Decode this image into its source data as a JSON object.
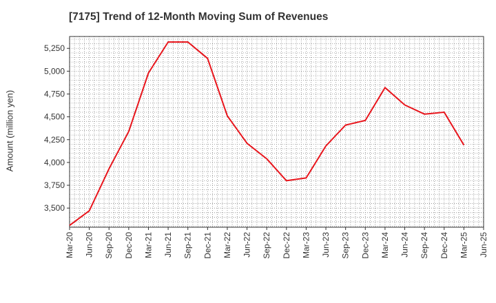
{
  "chart_data": {
    "type": "line",
    "title": "[7175]  Trend of 12-Month Moving Sum of Revenues",
    "xlabel": "",
    "ylabel": "Amount (million yen)",
    "categories": [
      "Mar-20",
      "Jun-20",
      "Sep-20",
      "Dec-20",
      "Mar-21",
      "Jun-21",
      "Sep-21",
      "Dec-21",
      "Mar-22",
      "Jun-22",
      "Sep-22",
      "Dec-22",
      "Mar-23",
      "Jun-23",
      "Sep-23",
      "Dec-23",
      "Mar-24",
      "Jun-24",
      "Sep-24",
      "Dec-24",
      "Mar-25",
      "Jun-25"
    ],
    "series": [
      {
        "values": [
          3310,
          3470,
          3930,
          4340,
          4980,
          5320,
          5320,
          5140,
          4510,
          4210,
          4040,
          3800,
          3830,
          4180,
          4410,
          4460,
          4820,
          4630,
          4530,
          4550,
          4190,
          null
        ],
        "color": "#e8141b"
      }
    ],
    "ylim": [
      3290,
      5380
    ],
    "yticks": [
      3500,
      3750,
      4000,
      4250,
      4500,
      4750,
      5000,
      5250
    ],
    "ytick_labels": [
      "3,500",
      "3,750",
      "4,000",
      "4,250",
      "4,500",
      "4,750",
      "5,000",
      "5,250"
    ],
    "grid": true,
    "grid_style": "dotted"
  }
}
